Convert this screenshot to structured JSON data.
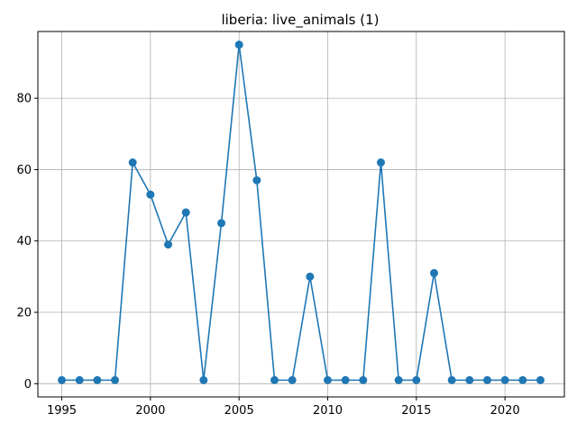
{
  "chart_data": {
    "type": "line",
    "title": "liberia: live_animals (1)",
    "xlabel": "",
    "ylabel": "",
    "x": [
      1995,
      1996,
      1997,
      1998,
      1999,
      2000,
      2001,
      2002,
      2003,
      2004,
      2005,
      2006,
      2007,
      2008,
      2009,
      2010,
      2011,
      2012,
      2013,
      2014,
      2015,
      2016,
      2017,
      2018,
      2019,
      2020,
      2021,
      2022
    ],
    "series": [
      {
        "values": [
          1,
          1,
          1,
          1,
          62,
          53,
          39,
          48,
          1,
          45,
          95,
          57,
          1,
          1,
          30,
          1,
          1,
          1,
          62,
          1,
          1,
          31,
          1,
          1,
          1,
          1,
          1,
          1
        ]
      }
    ],
    "xlim": [
      1993.65,
      2023.35
    ],
    "ylim": [
      -3.7,
      98.7
    ],
    "xticks": [
      1995,
      2000,
      2005,
      2010,
      2015,
      2020
    ],
    "yticks": [
      0,
      20,
      40,
      60,
      80
    ],
    "grid": true,
    "colors": {
      "line": "#1f77b4",
      "grid": "#b0b0b0",
      "axes": "#000000"
    }
  }
}
